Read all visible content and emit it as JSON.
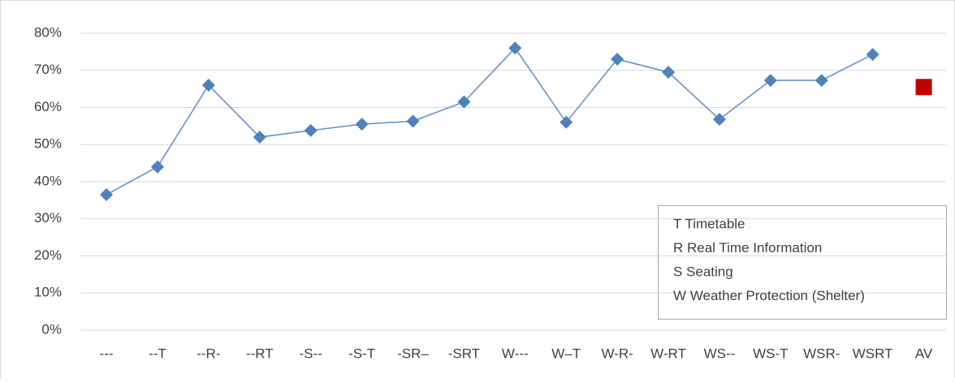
{
  "chart_data": {
    "type": "line",
    "categories": [
      "---",
      "--T",
      "--R-",
      "--RT",
      "-S--",
      "-S-T",
      "-SR–",
      "-SRT",
      "W---",
      "W–T",
      "W-R-",
      "W-RT",
      "WS--",
      "WS-T",
      "WSR-",
      "WSRT",
      "AV"
    ],
    "series": [
      {
        "color": "#4f81bd",
        "marker": "diamond",
        "line": true,
        "values": [
          36.5,
          44,
          66,
          52,
          53.8,
          55.5,
          56.3,
          61.5,
          76,
          56,
          73,
          69.5,
          56.8,
          67.3,
          67.3,
          74.3,
          null
        ]
      },
      {
        "color": "#c00000",
        "marker": "square",
        "line": false,
        "values": [
          null,
          null,
          null,
          null,
          null,
          null,
          null,
          null,
          null,
          null,
          null,
          null,
          null,
          null,
          null,
          null,
          65.5
        ]
      }
    ],
    "ylim": [
      0,
      80
    ],
    "yticks": [
      {
        "value": 0,
        "label": "0%"
      },
      {
        "value": 10,
        "label": "10%"
      },
      {
        "value": 20,
        "label": "20%"
      },
      {
        "value": 30,
        "label": "30%"
      },
      {
        "value": 40,
        "label": "40%"
      },
      {
        "value": 50,
        "label": "50%"
      },
      {
        "value": 60,
        "label": "60%"
      },
      {
        "value": 70,
        "label": "70%"
      },
      {
        "value": 80,
        "label": "80%"
      }
    ],
    "grid": true,
    "annotations": [
      "T Timetable",
      "R Real Time Information",
      "S Seating",
      "W Weather Protection (Shelter)"
    ]
  }
}
